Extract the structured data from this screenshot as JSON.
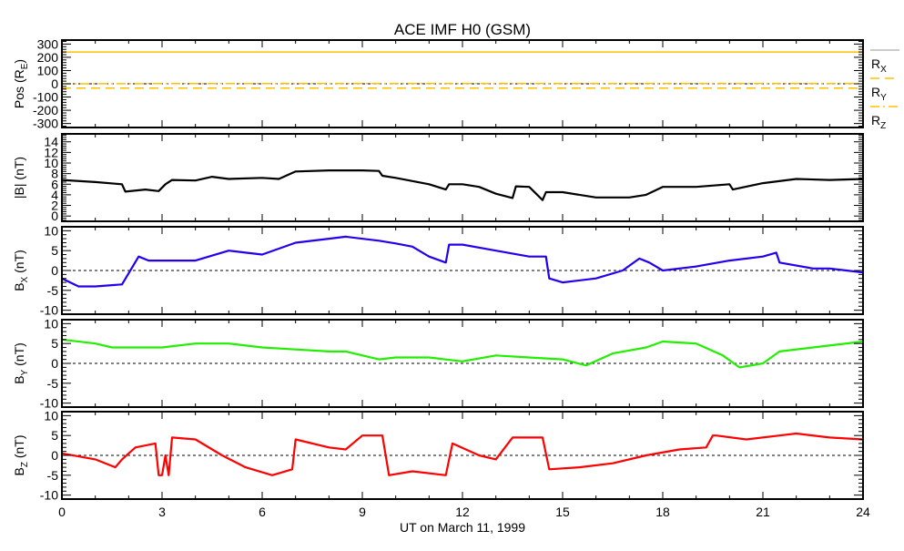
{
  "chart_data": {
    "type": "line",
    "title": "ACE IMF H0 (GSM)",
    "xlabel": "UT on March 11, 1999",
    "xlim": [
      0,
      24
    ],
    "xticks": [
      "0",
      "3",
      "6",
      "9",
      "12",
      "15",
      "18",
      "21",
      "24"
    ],
    "colors": {
      "pos": "#ffc000",
      "bmag": "#000000",
      "bx": "#2200ee",
      "by": "#22ee00",
      "bz": "#ff0000"
    },
    "panels": [
      {
        "id": "pos",
        "ylabel": "Pos (R",
        "ylabel_sub": "E",
        "ylabel_suffix": ")",
        "ylim": [
          -330,
          330
        ],
        "yticks": [
          -300,
          -200,
          -100,
          0,
          100,
          200,
          300
        ],
        "ytick_labels": [
          "-300",
          "-200",
          "-100",
          "0",
          "100",
          "200",
          "300"
        ],
        "zero_line": true,
        "legend": [
          {
            "label": "R",
            "sub": "X",
            "style": "solid"
          },
          {
            "label": "R",
            "sub": "Y",
            "style": "dashed"
          },
          {
            "label": "R",
            "sub": "Z",
            "style": "dashdot"
          }
        ],
        "series": [
          {
            "name": "Rx",
            "style": "solid",
            "x": [
              0,
              24
            ],
            "y": [
              240,
              240
            ]
          },
          {
            "name": "Ry",
            "style": "dashed",
            "x": [
              0,
              24
            ],
            "y": [
              -32,
              -32
            ]
          },
          {
            "name": "Rz",
            "style": "dashdot",
            "x": [
              0,
              4,
              24
            ],
            "y": [
              0,
              2,
              3
            ]
          }
        ]
      },
      {
        "id": "bmag",
        "ylabel": "|B| (nT)",
        "ylim": [
          -1,
          15.5
        ],
        "yticks": [
          0,
          2,
          4,
          6,
          8,
          10,
          12,
          14
        ],
        "ytick_labels": [
          "0",
          "2",
          "4",
          "6",
          "8",
          "10",
          "12",
          "14"
        ],
        "zero_line": false,
        "series": [
          {
            "name": "|B|",
            "x": [
              0,
              1,
              1.8,
              1.9,
              2.5,
              2.9,
              3.1,
              3.3,
              4,
              4.5,
              5,
              6,
              6.5,
              7,
              8,
              9,
              9.5,
              9.6,
              10,
              11,
              11.5,
              11.6,
              12,
              12.5,
              13,
              13.5,
              13.6,
              14,
              14.4,
              14.5,
              15,
              16,
              17,
              17.5,
              18,
              19,
              20,
              20.1,
              21,
              22,
              23,
              24
            ],
            "y": [
              6.8,
              6.4,
              6.0,
              4.6,
              5.0,
              4.7,
              6.0,
              6.8,
              6.7,
              7.4,
              7.0,
              7.2,
              7.0,
              8.4,
              8.6,
              8.6,
              8.5,
              7.6,
              7.2,
              6.0,
              5.0,
              6.0,
              6.0,
              5.5,
              4.2,
              3.4,
              5.6,
              5.5,
              3.0,
              4.5,
              4.5,
              3.5,
              3.5,
              4.0,
              5.5,
              5.5,
              6.0,
              5.0,
              6.2,
              7.0,
              6.8,
              7.0
            ]
          }
        ]
      },
      {
        "id": "bx",
        "ylabel": "B",
        "ylabel_sub": "X",
        "ylabel_suffix": " (nT)",
        "ylim": [
          -11,
          11
        ],
        "yticks": [
          -10,
          -5,
          0,
          5,
          10
        ],
        "ytick_labels": [
          "-10",
          "-5",
          "0",
          "5",
          "10"
        ],
        "zero_line": true,
        "series": [
          {
            "name": "Bx",
            "x": [
              0,
              0.5,
              1,
              1.8,
              2.3,
              2.6,
              3,
              4,
              5,
              5.5,
              6,
              7,
              8,
              8.5,
              9.5,
              10,
              10.5,
              11,
              11.5,
              11.6,
              12,
              13,
              14,
              14.5,
              14.6,
              15,
              16,
              16.8,
              17.3,
              17.6,
              18,
              19,
              20,
              21,
              21.4,
              21.5,
              22.5,
              23,
              23.5,
              24
            ],
            "y": [
              -2,
              -4,
              -4,
              -3.5,
              3.5,
              2.5,
              2.5,
              2.5,
              5,
              4.5,
              4,
              7,
              8,
              8.5,
              7.5,
              6.8,
              6,
              3.5,
              2,
              6.5,
              6.5,
              5,
              3.5,
              3.5,
              -2,
              -3,
              -2,
              0,
              3,
              2,
              0,
              1,
              2.5,
              3.5,
              4.5,
              2,
              0.5,
              0.5,
              0,
              -0.5
            ]
          }
        ]
      },
      {
        "id": "by",
        "ylabel": "B",
        "ylabel_sub": "Y",
        "ylabel_suffix": " (nT)",
        "ylim": [
          -11,
          11
        ],
        "yticks": [
          -10,
          -5,
          0,
          5,
          10
        ],
        "ytick_labels": [
          "-10",
          "-5",
          "0",
          "5",
          "10"
        ],
        "zero_line": true,
        "series": [
          {
            "name": "By",
            "x": [
              0,
              1,
              1.5,
              2,
              3,
              4,
              5,
              6,
              7,
              8,
              8.5,
              9.5,
              10,
              11,
              12,
              13,
              14,
              15,
              15.7,
              16.5,
              17.5,
              18,
              19,
              19.8,
              20.3,
              21,
              21.5,
              22.5,
              24
            ],
            "y": [
              6,
              5,
              4,
              4,
              4,
              5,
              5,
              4,
              3.5,
              3,
              3,
              1,
              1.5,
              1.5,
              0.5,
              2,
              1.5,
              1,
              -0.5,
              2.5,
              4,
              5.5,
              5,
              2,
              -1,
              0,
              3,
              4,
              5.5
            ]
          }
        ]
      },
      {
        "id": "bz",
        "ylabel": "B",
        "ylabel_sub": "Z",
        "ylabel_suffix": " (nT)",
        "ylim": [
          -11,
          11
        ],
        "yticks": [
          -10,
          -5,
          0,
          5,
          10
        ],
        "ytick_labels": [
          "-10",
          "-5",
          "0",
          "5",
          "10"
        ],
        "zero_line": true,
        "series": [
          {
            "name": "Bz",
            "x": [
              0,
              1,
              1.6,
              1.8,
              2.2,
              2.8,
              2.9,
              3.0,
              3.1,
              3.2,
              3.3,
              4,
              4.8,
              5.5,
              6.3,
              6.9,
              7.0,
              8,
              8.5,
              9,
              9.6,
              9.8,
              10.5,
              11.5,
              11.7,
              12.5,
              13,
              13.5,
              14.4,
              14.6,
              15.5,
              16.5,
              17.5,
              18.5,
              19.3,
              19.5,
              19.6,
              20.5,
              21.5,
              22,
              23,
              24
            ],
            "y": [
              0.5,
              -1,
              -3,
              -1,
              2,
              3,
              -5,
              -5,
              0,
              -5,
              4.5,
              4,
              0,
              -3,
              -5,
              -3.5,
              4,
              2,
              1.5,
              5,
              5,
              -5,
              -4,
              -5,
              3,
              0,
              -1,
              4.5,
              4.5,
              -3.5,
              -3,
              -2,
              0,
              1.5,
              2,
              5,
              5,
              4,
              5,
              5.5,
              4.5,
              4
            ]
          }
        ]
      }
    ]
  }
}
